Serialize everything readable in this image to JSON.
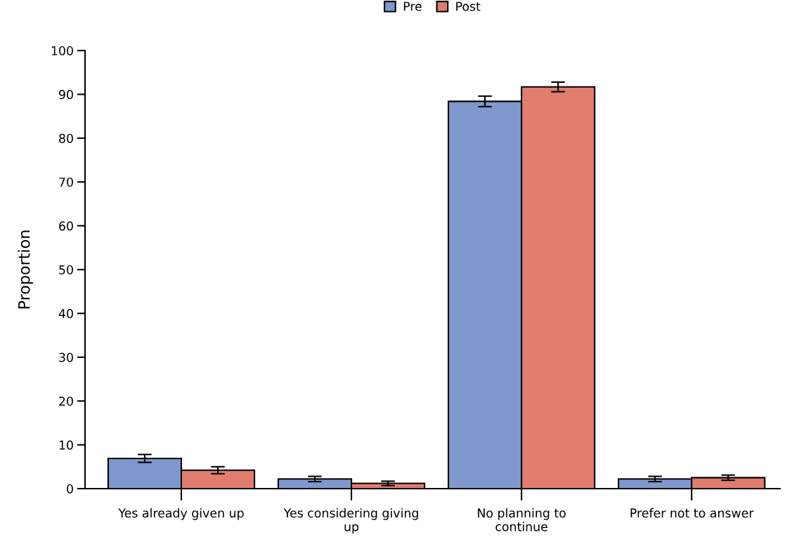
{
  "chart_data": {
    "type": "bar",
    "ylabel": "Proportion",
    "categories": [
      "Yes already given up",
      "Yes considering giving\nup",
      "No planning to\ncontinue",
      "Prefer not to answer"
    ],
    "series": [
      {
        "name": "Pre",
        "color": "#7f98cd",
        "values": [
          6.9,
          2.2,
          88.4,
          2.2
        ],
        "errors": [
          0.9,
          0.6,
          1.2,
          0.6
        ]
      },
      {
        "name": "Post",
        "color": "#e07d6e",
        "values": [
          4.2,
          1.2,
          91.7,
          2.5
        ],
        "errors": [
          0.8,
          0.5,
          1.1,
          0.6
        ]
      }
    ],
    "ylim": [
      0,
      100
    ],
    "yticks": [
      0,
      10,
      20,
      30,
      40,
      50,
      60,
      70,
      80,
      90,
      100
    ],
    "legend": "top",
    "grid": false
  }
}
